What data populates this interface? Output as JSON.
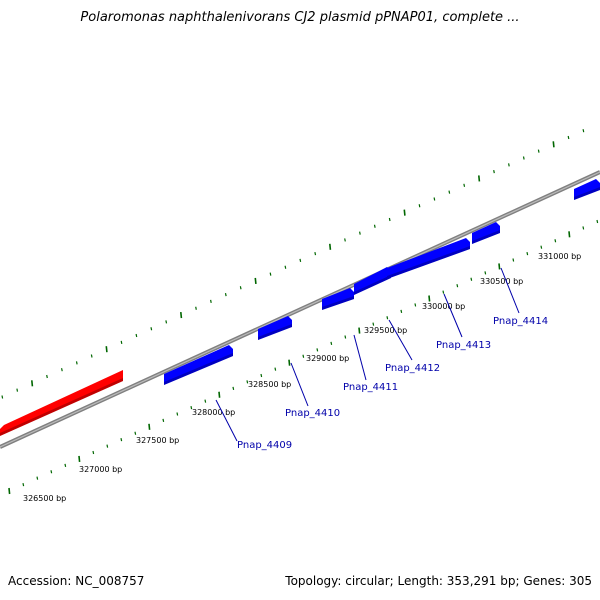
{
  "title": "Polaromonas naphthalenivorans CJ2 plasmid pPNAP01, complete ...",
  "footer": {
    "accession": "Accession: NC_008757",
    "summary": "Topology: circular; Length: 353,291 bp; Genes: 305"
  },
  "colors": {
    "forward_gene": "#0000ff",
    "reverse_gene": "#ff0000",
    "tick": "#006600",
    "backbone": "#808080",
    "label_line": "#0000aa"
  },
  "ticks": [
    {
      "bp": 326500,
      "label": "326500 bp"
    },
    {
      "bp": 327000,
      "label": "327000 bp"
    },
    {
      "bp": 327500,
      "label": "327500 bp"
    },
    {
      "bp": 328000,
      "label": "328000 bp"
    },
    {
      "bp": 328500,
      "label": "328500 bp"
    },
    {
      "bp": 329000,
      "label": "329000 bp"
    },
    {
      "bp": 329500,
      "label": "329500 bp"
    },
    {
      "bp": 330000,
      "label": "330000 bp"
    },
    {
      "bp": 330500,
      "label": "330500 bp"
    },
    {
      "bp": 331000,
      "label": "331000 bp"
    }
  ],
  "genes": [
    {
      "label": "",
      "strand": "reverse"
    },
    {
      "label": "Pnap_4409",
      "strand": "forward"
    },
    {
      "label": "Pnap_4410",
      "strand": "forward"
    },
    {
      "label": "Pnap_4411",
      "strand": "forward"
    },
    {
      "label": "Pnap_4412",
      "strand": "forward"
    },
    {
      "label": "Pnap_4413",
      "strand": "forward"
    },
    {
      "label": "Pnap_4414",
      "strand": "forward"
    },
    {
      "label": "",
      "strand": "forward"
    }
  ]
}
